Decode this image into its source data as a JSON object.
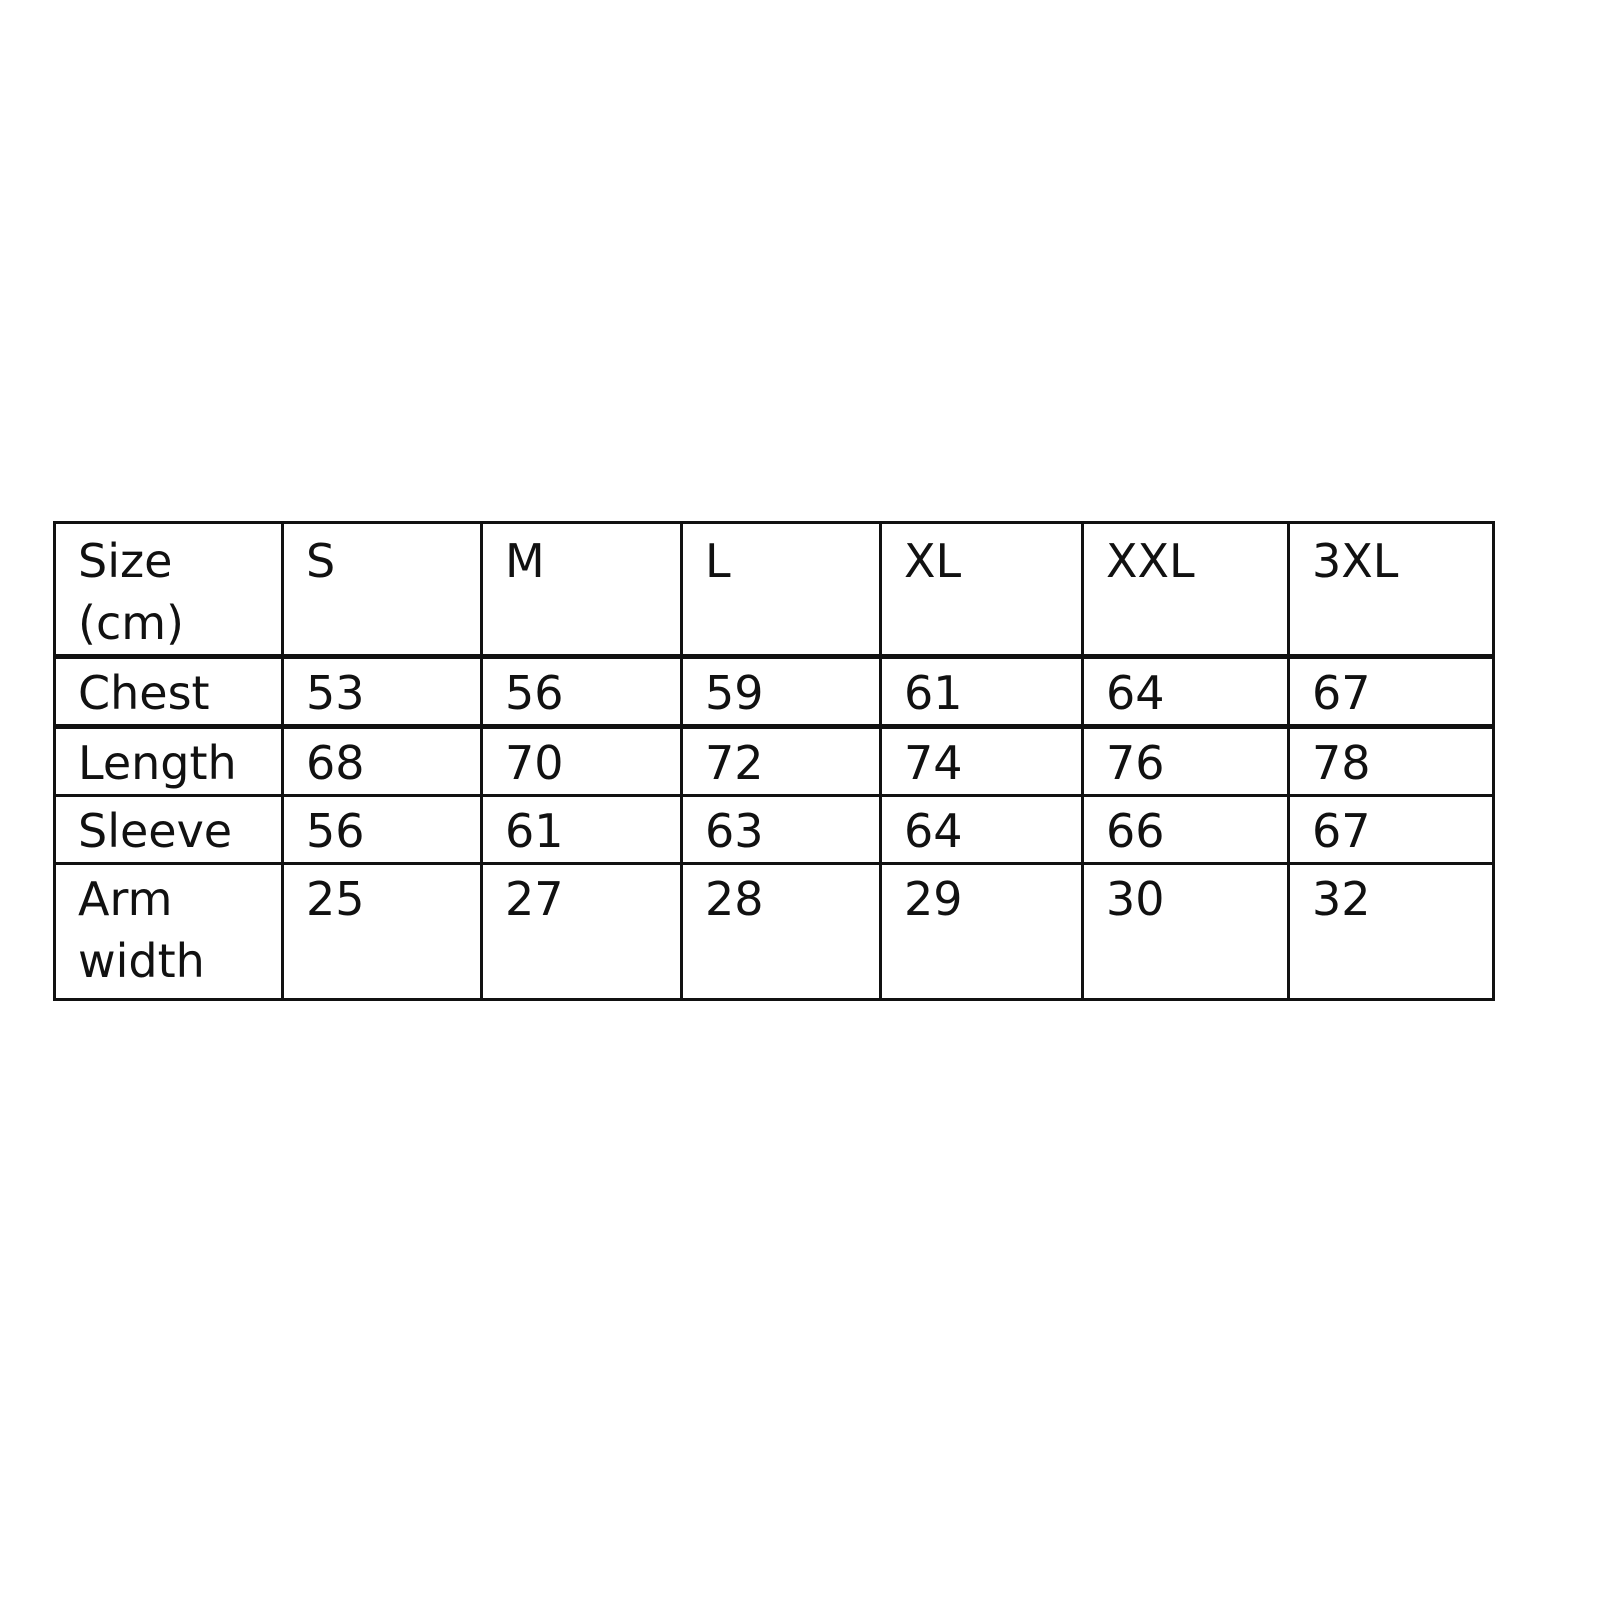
{
  "table": {
    "header": [
      "Size\n(cm)",
      "S",
      "M",
      "L",
      "XL",
      "XXL",
      "3XL"
    ],
    "rows": [
      {
        "label": "Chest",
        "values": [
          "53",
          "56",
          "59",
          "61",
          "64",
          "67"
        ]
      },
      {
        "label": "Length",
        "values": [
          "68",
          "70",
          "72",
          "74",
          "76",
          "78"
        ]
      },
      {
        "label": "Sleeve",
        "values": [
          "56",
          "61",
          "63",
          "64",
          "66",
          "67"
        ]
      },
      {
        "label": "Arm\nwidth",
        "values": [
          "25",
          "27",
          "28",
          "29",
          "30",
          "32"
        ]
      }
    ]
  }
}
